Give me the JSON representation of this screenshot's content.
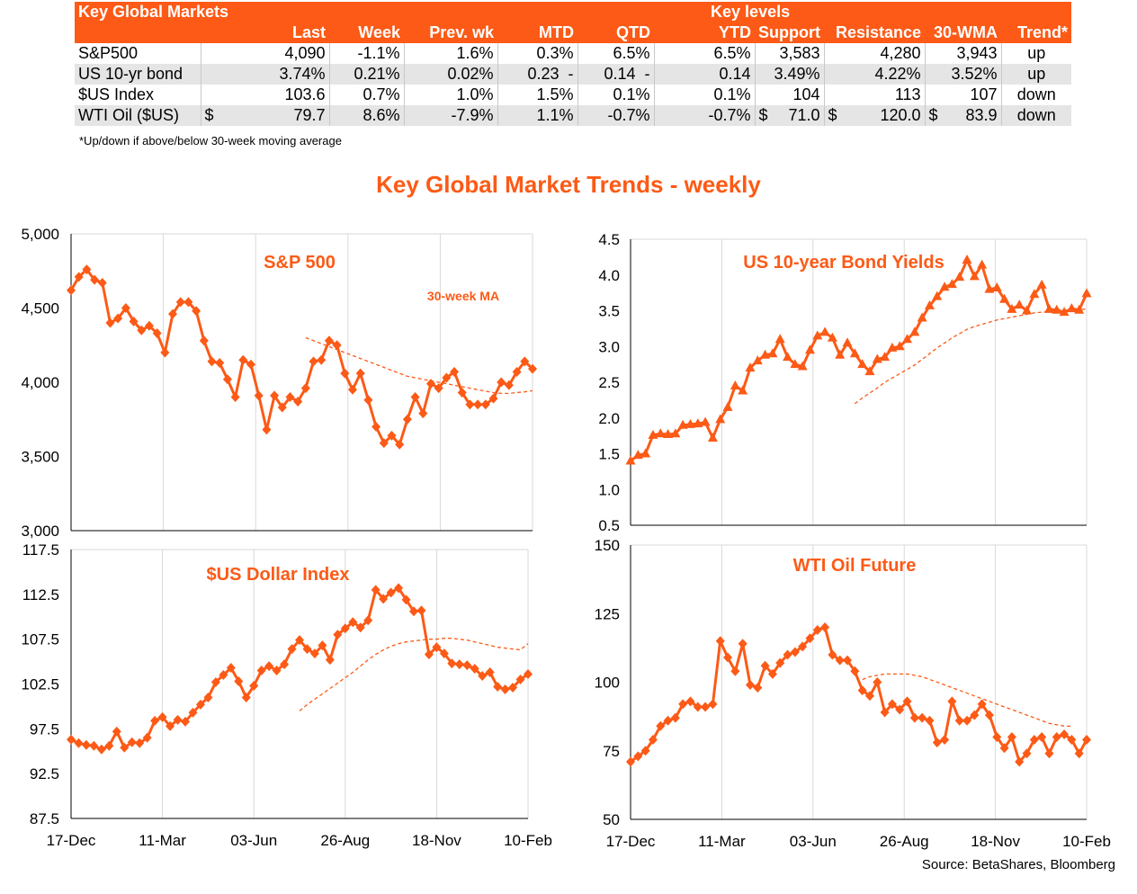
{
  "table": {
    "title": "Key Global Markets",
    "key_levels_label": "Key levels",
    "columns": [
      "",
      "Last",
      "Week",
      "Prev. wk",
      "MTD",
      "QTD",
      "YTD",
      "Support",
      "Resistance",
      "30-WMA",
      "Trend*"
    ],
    "rows": [
      {
        "name": "S&P500",
        "cur": "",
        "last": "4,090",
        "week": "-1.1%",
        "prev": "1.6%",
        "mtd": "0.3%",
        "qtd": "6.5%",
        "ytd": "6.5%",
        "support": "3,583",
        "resistance": "4,280",
        "wma": "3,943",
        "trend": "up"
      },
      {
        "name": "US 10-yr bond",
        "cur": "",
        "last": "3.74%",
        "week": "0.21%",
        "prev": "0.02%",
        "mtd": "0.23  -",
        "qtd": "0.14  -",
        "ytd": "0.14",
        "support": "3.49%",
        "resistance": "4.22%",
        "wma": "3.52%",
        "trend": "up"
      },
      {
        "name": "$US Index",
        "cur": "",
        "last": "103.6",
        "week": "0.7%",
        "prev": "1.0%",
        "mtd": "1.5%",
        "qtd": "0.1%",
        "ytd": "0.1%",
        "support": "104",
        "resistance": "113",
        "wma": "107",
        "trend": "down"
      },
      {
        "name": "WTI Oil ($US)",
        "cur": "$",
        "last": "79.7",
        "week": "8.6%",
        "prev": "-7.9%",
        "mtd": "1.1%",
        "qtd": "-0.7%",
        "ytd": "-0.7%",
        "support": "71.0",
        "resistance": "120.0",
        "wma": "83.9",
        "trend": "down",
        "support_cur": "$",
        "resistance_cur": "$",
        "wma_cur": "$"
      }
    ],
    "footnote": "*Up/down if above/below 30-week moving average"
  },
  "main_title": "Key Global Market Trends - weekly",
  "source": "Source:  BetaShares, Bloomberg",
  "x_tick_labels": [
    "17-Dec",
    "11-Mar",
    "03-Jun",
    "26-Aug",
    "18-Nov",
    "10-Feb"
  ],
  "colors": {
    "accent": "#fc5a16",
    "grid": "#d9d9d9",
    "shaded_row": "#e5e5e5"
  },
  "chart_data": [
    {
      "type": "line",
      "title": "S&P 500",
      "annotation": "30-week MA",
      "marker": "diamond",
      "ylim": [
        3000,
        5000
      ],
      "yticks": [
        "3,000",
        "3,500",
        "4,000",
        "4,500",
        "5,000"
      ],
      "ytick_values": [
        3000,
        3500,
        4000,
        4500,
        5000
      ],
      "series": [
        {
          "values": [
            4620,
            4710,
            4760,
            4690,
            4670,
            4400,
            4430,
            4500,
            4410,
            4350,
            4380,
            4330,
            4200,
            4460,
            4540,
            4540,
            4480,
            4280,
            4140,
            4130,
            4020,
            3900,
            4150,
            4120,
            3910,
            3680,
            3910,
            3830,
            3900,
            3870,
            3960,
            4140,
            4150,
            4280,
            4250,
            4060,
            3950,
            4060,
            3880,
            3700,
            3590,
            3640,
            3580,
            3750,
            3900,
            3790,
            3990,
            3960,
            4030,
            4070,
            3930,
            3850,
            3850,
            3850,
            3890,
            4000,
            3980,
            4070,
            4140,
            4090
          ]
        },
        {
          "start": 30,
          "style": "dashed",
          "values": [
            4300,
            4280,
            4260,
            4240,
            4220,
            4200,
            4180,
            4160,
            4140,
            4120,
            4100,
            4080,
            4060,
            4040,
            4030,
            4020,
            4010,
            4000,
            3990,
            3980,
            3970,
            3960,
            3950,
            3940,
            3930,
            3925,
            3925,
            3930,
            3935,
            3943
          ]
        }
      ]
    },
    {
      "type": "line",
      "title": "US  10-year Bond Yields",
      "marker": "triangle",
      "ylim": [
        0.5,
        4.5
      ],
      "yticks": [
        "0.5",
        "1.0",
        "1.5",
        "2.0",
        "2.5",
        "3.0",
        "3.5",
        "4.0",
        "4.5"
      ],
      "ytick_values": [
        0.5,
        1.0,
        1.5,
        2.0,
        2.5,
        3.0,
        3.5,
        4.0,
        4.5
      ],
      "series": [
        {
          "values": [
            1.4,
            1.48,
            1.5,
            1.76,
            1.78,
            1.77,
            1.78,
            1.9,
            1.91,
            1.92,
            1.94,
            1.72,
            1.98,
            2.15,
            2.45,
            2.38,
            2.7,
            2.8,
            2.88,
            2.9,
            3.1,
            2.85,
            2.75,
            2.72,
            2.95,
            3.15,
            3.2,
            3.12,
            2.88,
            3.05,
            2.9,
            2.75,
            2.65,
            2.82,
            2.85,
            2.98,
            3.0,
            3.1,
            3.2,
            3.4,
            3.57,
            3.7,
            3.83,
            3.87,
            3.97,
            4.21,
            3.98,
            4.14,
            3.8,
            3.82,
            3.66,
            3.52,
            3.58,
            3.5,
            3.73,
            3.86,
            3.52,
            3.51,
            3.48,
            3.53,
            3.51,
            3.74
          ]
        },
        {
          "start": 30,
          "style": "dashed",
          "values": [
            2.2,
            2.28,
            2.35,
            2.42,
            2.5,
            2.56,
            2.62,
            2.68,
            2.74,
            2.82,
            2.9,
            2.98,
            3.05,
            3.12,
            3.18,
            3.24,
            3.28,
            3.31,
            3.34,
            3.37,
            3.39,
            3.41,
            3.43,
            3.45,
            3.47,
            3.48,
            3.49,
            3.5,
            3.51,
            3.51,
            3.52,
            3.52
          ]
        }
      ]
    },
    {
      "type": "line",
      "title": "$US Dollar Index",
      "marker": "diamond",
      "ylim": [
        87.5,
        117.5
      ],
      "yticks": [
        "87.5",
        "92.5",
        "97.5",
        "102.5",
        "107.5",
        "112.5",
        "117.5"
      ],
      "ytick_values": [
        87.5,
        92.5,
        97.5,
        102.5,
        107.5,
        112.5,
        117.5
      ],
      "series": [
        {
          "values": [
            96.3,
            95.9,
            95.7,
            95.6,
            95.2,
            95.6,
            97.2,
            95.4,
            96.0,
            95.9,
            96.5,
            98.4,
            98.8,
            97.8,
            98.5,
            98.3,
            99.3,
            100.2,
            101.0,
            102.7,
            103.5,
            104.3,
            102.8,
            101.0,
            102.3,
            104.0,
            104.5,
            104.0,
            104.7,
            106.4,
            107.4,
            106.4,
            105.9,
            106.8,
            105.2,
            108.0,
            108.7,
            109.4,
            108.8,
            109.6,
            113.0,
            112.0,
            112.7,
            113.2,
            111.9,
            110.6,
            110.7,
            105.8,
            106.6,
            105.9,
            104.8,
            104.7,
            104.6,
            104.2,
            103.4,
            103.8,
            102.2,
            101.9,
            102.1,
            103.0,
            103.6
          ]
        },
        {
          "start": 30,
          "style": "dashed",
          "values": [
            99.5,
            100.2,
            100.8,
            101.4,
            102.0,
            102.6,
            103.2,
            103.8,
            104.5,
            105.2,
            105.8,
            106.3,
            106.7,
            107.0,
            107.2,
            107.3,
            107.4,
            107.5,
            107.5,
            107.6,
            107.6,
            107.5,
            107.4,
            107.2,
            107.0,
            106.8,
            106.6,
            106.5,
            106.4,
            106.3,
            107.0
          ]
        }
      ]
    },
    {
      "type": "line",
      "title": "WTI Oil Future",
      "marker": "diamond",
      "ylim": [
        50,
        150
      ],
      "yticks": [
        "50",
        "75",
        "100",
        "125",
        "150"
      ],
      "ytick_values": [
        50,
        75,
        100,
        125,
        150
      ],
      "series": [
        {
          "values": [
            71,
            73,
            75,
            79,
            84,
            86,
            87,
            92,
            93,
            91,
            91,
            92,
            115,
            109,
            104,
            114,
            99,
            98,
            106,
            103,
            107,
            110,
            111,
            113,
            116,
            119,
            120,
            110,
            108,
            108,
            104,
            97,
            95,
            100,
            89,
            92,
            90,
            93,
            87,
            87,
            86,
            78,
            79,
            93,
            86,
            86,
            88,
            92,
            88,
            80,
            76,
            80,
            71,
            74,
            79,
            80,
            74,
            80,
            81,
            79,
            74,
            79
          ]
        },
        {
          "start": 31,
          "style": "dashed",
          "values": [
            101,
            102,
            102.5,
            103,
            103,
            103,
            103,
            102.5,
            102,
            101,
            100,
            99,
            98,
            97,
            96,
            95,
            94,
            93,
            92,
            91,
            90,
            89,
            88,
            87,
            86,
            85,
            84.5,
            84,
            83.9
          ]
        }
      ]
    }
  ]
}
